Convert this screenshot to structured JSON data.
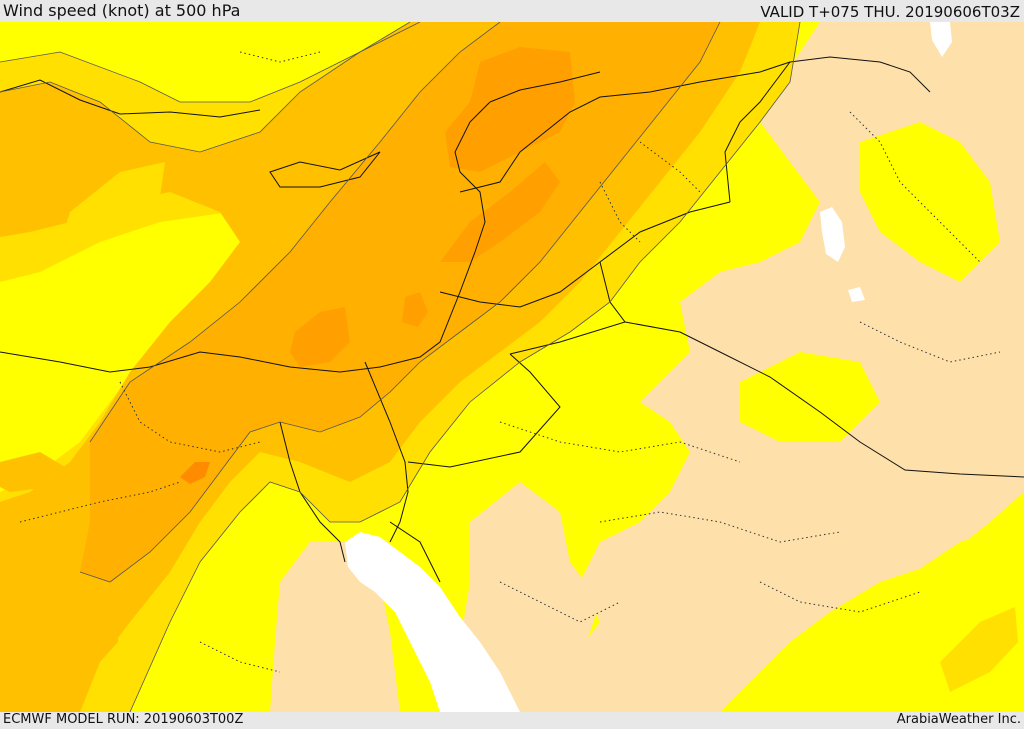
{
  "header": {
    "title": "Wind speed (knot) at 500 hPa",
    "valid": "VALID T+075 THU. 20190606T03Z"
  },
  "footer": {
    "model_run": "ECMWF MODEL RUN: 20190603T00Z",
    "credit": "ArabiaWeather Inc."
  },
  "palette": {
    "sea": "#ffffff",
    "tan": "#fde0aa",
    "yellow": "#ffff00",
    "gold": "#ffe000",
    "amber": "#ffc000",
    "orange1": "#ffb000",
    "orange2": "#ffa000",
    "orange3": "#ff8c00",
    "border": "#111111"
  }
}
